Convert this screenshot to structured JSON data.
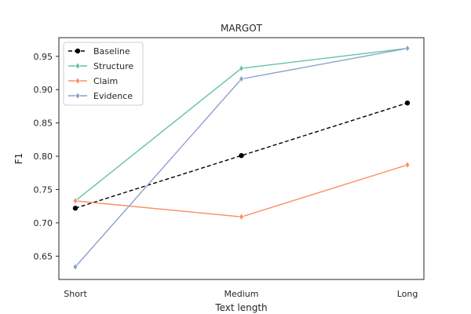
{
  "chart_data": {
    "type": "line",
    "title": "MARGOT",
    "xlabel": "Text length",
    "ylabel": "F1",
    "categories": [
      "Short",
      "Medium",
      "Long"
    ],
    "ylim": [
      0.615,
      0.978
    ],
    "yticks": [
      0.65,
      0.7,
      0.75,
      0.8,
      0.85,
      0.9,
      0.95
    ],
    "grid": false,
    "legend_position": "top-left",
    "series": [
      {
        "name": "Baseline",
        "values": [
          0.722,
          0.801,
          0.88
        ],
        "color": "#000000",
        "dashed": true,
        "marker": "circle"
      },
      {
        "name": "Structure",
        "values": [
          0.733,
          0.932,
          0.962
        ],
        "color": "#66c2a5",
        "dashed": false,
        "marker": "diamond"
      },
      {
        "name": "Claim",
        "values": [
          0.733,
          0.709,
          0.787
        ],
        "color": "#fc8d62",
        "dashed": false,
        "marker": "diamond"
      },
      {
        "name": "Evidence",
        "values": [
          0.634,
          0.916,
          0.962
        ],
        "color": "#8da0cb",
        "dashed": false,
        "marker": "diamond"
      }
    ]
  }
}
